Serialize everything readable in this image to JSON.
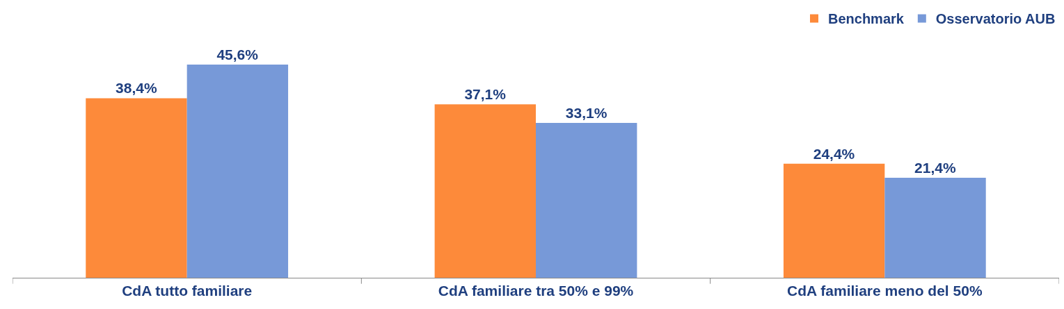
{
  "chart_data": {
    "type": "bar",
    "categories": [
      "CdA tutto familiare",
      "CdA familiare tra 50% e 99%",
      "CdA familiare meno del 50%"
    ],
    "series": [
      {
        "name": "Benchmark",
        "color": "#fd8a3a",
        "values": [
          38.4,
          37.1,
          24.4
        ],
        "value_labels": [
          "38,4%",
          "37,1%",
          "24,4%"
        ]
      },
      {
        "name": "Osservatorio AUB",
        "color": "#7799d8",
        "values": [
          45.6,
          33.1,
          21.4
        ],
        "value_labels": [
          "45,6%",
          "33,1%",
          "21,4%"
        ]
      }
    ],
    "legend": "top right"
  }
}
